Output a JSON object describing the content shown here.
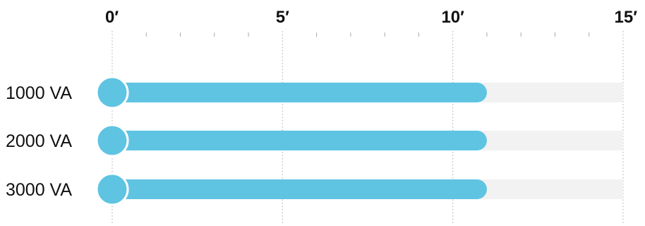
{
  "chart_data": {
    "type": "bar",
    "orientation": "horizontal",
    "title": "",
    "xlabel": "",
    "ylabel": "",
    "x_ticks": [
      "0′",
      "5′",
      "10′",
      "15′"
    ],
    "xlim": [
      0,
      15
    ],
    "categories": [
      "1000 VA",
      "2000 VA",
      "3000 VA"
    ],
    "values": [
      11,
      11,
      11
    ],
    "unit": "minutes",
    "grid": true,
    "legend": "none",
    "colors": {
      "bar": "#5fc4e2",
      "track": "#f2f2f2",
      "grid": "#a9a9a9",
      "text": "#111111"
    }
  }
}
